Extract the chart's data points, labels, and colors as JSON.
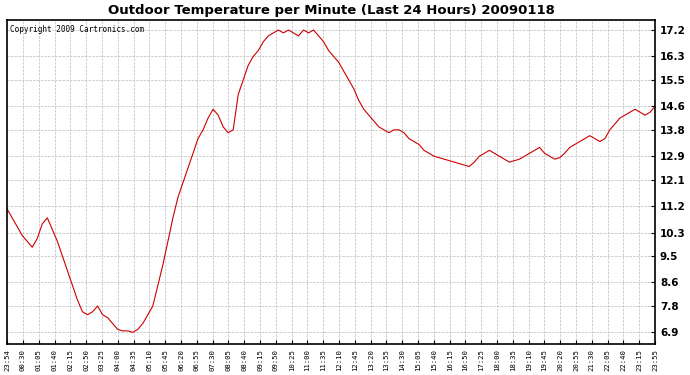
{
  "title": "Outdoor Temperature per Minute (Last 24 Hours) 20090118",
  "copyright": "Copyright 2009 Cartronics.com",
  "line_color": "#cc0000",
  "bg_color": "#ffffff",
  "plot_bg_color": "#ffffff",
  "grid_color": "#bbbbbb",
  "yticks": [
    6.9,
    7.8,
    8.6,
    9.5,
    10.3,
    11.2,
    12.1,
    12.9,
    13.8,
    14.6,
    15.5,
    16.3,
    17.2
  ],
  "ylim": [
    6.5,
    17.55
  ],
  "xtick_labels": [
    "23:54",
    "00:30",
    "01:05",
    "01:40",
    "02:15",
    "02:50",
    "03:25",
    "04:00",
    "04:35",
    "05:10",
    "05:45",
    "06:20",
    "06:55",
    "07:30",
    "08:05",
    "08:40",
    "09:15",
    "09:50",
    "10:25",
    "11:00",
    "11:35",
    "12:10",
    "12:45",
    "13:20",
    "13:55",
    "14:30",
    "15:05",
    "15:40",
    "16:15",
    "16:50",
    "17:25",
    "18:00",
    "18:35",
    "19:10",
    "19:45",
    "20:20",
    "20:55",
    "21:30",
    "22:05",
    "22:40",
    "23:15",
    "23:55"
  ],
  "temperature_data": [
    11.1,
    10.8,
    10.5,
    10.2,
    10.0,
    9.8,
    10.1,
    10.6,
    10.8,
    10.4,
    10.0,
    9.5,
    9.0,
    8.5,
    8.0,
    7.6,
    7.5,
    7.6,
    7.8,
    7.5,
    7.4,
    7.2,
    7.0,
    6.95,
    6.95,
    6.9,
    7.0,
    7.2,
    7.5,
    7.8,
    8.5,
    9.2,
    10.0,
    10.8,
    11.5,
    12.0,
    12.5,
    13.0,
    13.5,
    13.8,
    14.2,
    14.5,
    14.3,
    13.9,
    13.7,
    13.8,
    15.0,
    15.5,
    16.0,
    16.3,
    16.5,
    16.8,
    17.0,
    17.1,
    17.2,
    17.1,
    17.2,
    17.1,
    17.0,
    17.2,
    17.1,
    17.2,
    17.0,
    16.8,
    16.5,
    16.3,
    16.1,
    15.8,
    15.5,
    15.2,
    14.8,
    14.5,
    14.3,
    14.1,
    13.9,
    13.8,
    13.7,
    13.8,
    13.8,
    13.7,
    13.5,
    13.4,
    13.3,
    13.1,
    13.0,
    12.9,
    12.85,
    12.8,
    12.75,
    12.7,
    12.65,
    12.6,
    12.55,
    12.7,
    12.9,
    13.0,
    13.1,
    13.0,
    12.9,
    12.8,
    12.7,
    12.75,
    12.8,
    12.9,
    13.0,
    13.1,
    13.2,
    13.0,
    12.9,
    12.8,
    12.85,
    13.0,
    13.2,
    13.3,
    13.4,
    13.5,
    13.6,
    13.5,
    13.4,
    13.5,
    13.8,
    14.0,
    14.2,
    14.3,
    14.4,
    14.5,
    14.4,
    14.3,
    14.4,
    14.6
  ]
}
